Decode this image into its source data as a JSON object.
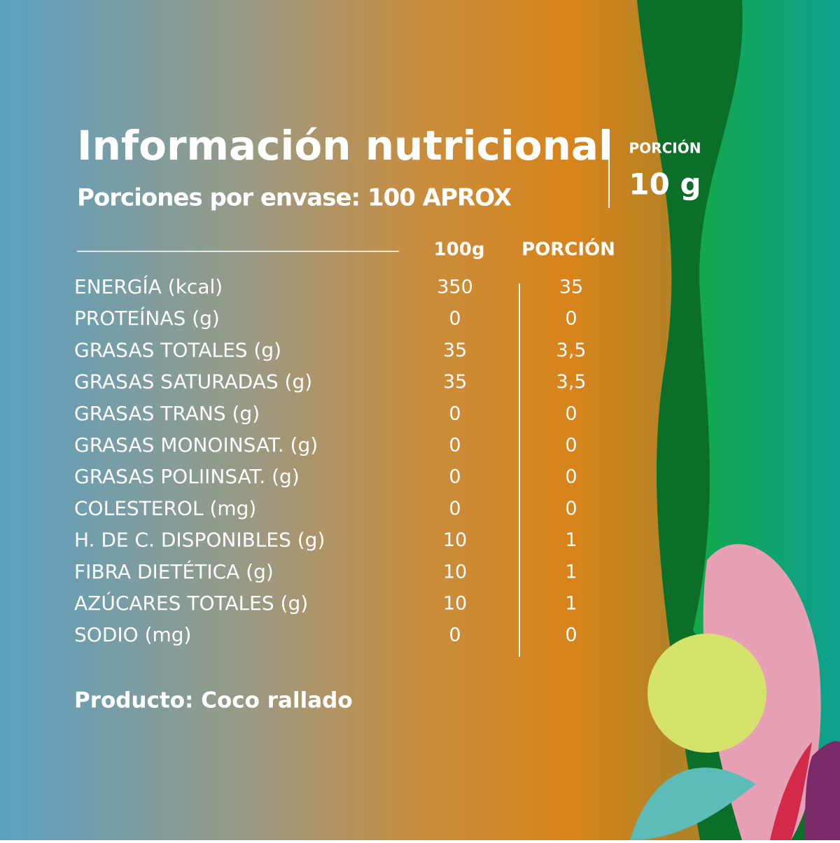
{
  "header": {
    "title": "Información nutricional",
    "subtitle": "Porciones por envase: 100 APROX",
    "portion_label": "PORCIÓN",
    "portion_size": "10 g"
  },
  "table": {
    "columns": [
      "100g",
      "PORCIÓN"
    ],
    "rows": [
      [
        "ENERGÍA (kcal)",
        "350",
        "35"
      ],
      [
        "PROTEÍNAS (g)",
        "0",
        "0"
      ],
      [
        "GRASAS TOTALES (g)",
        "35",
        "3,5"
      ],
      [
        "GRASAS SATURADAS (g)",
        "35",
        "3,5"
      ],
      [
        "GRASAS TRANS (g)",
        "0",
        "0"
      ],
      [
        "GRASAS MONOINSAT. (g)",
        "0",
        "0"
      ],
      [
        "GRASAS POLIINSAT. (g)",
        "0",
        "0"
      ],
      [
        "COLESTEROL (mg)",
        "0",
        "0"
      ],
      [
        "H. DE C. DISPONIBLES (g)",
        "10",
        "1"
      ],
      [
        "FIBRA DIETÉTICA (g)",
        "10",
        "1"
      ],
      [
        "AZÚCARES TOTALES (g)",
        "10",
        "1"
      ],
      [
        "SODIO (mg)",
        "0",
        "0"
      ]
    ]
  },
  "footer": {
    "product": "Producto: Coco rallado"
  }
}
